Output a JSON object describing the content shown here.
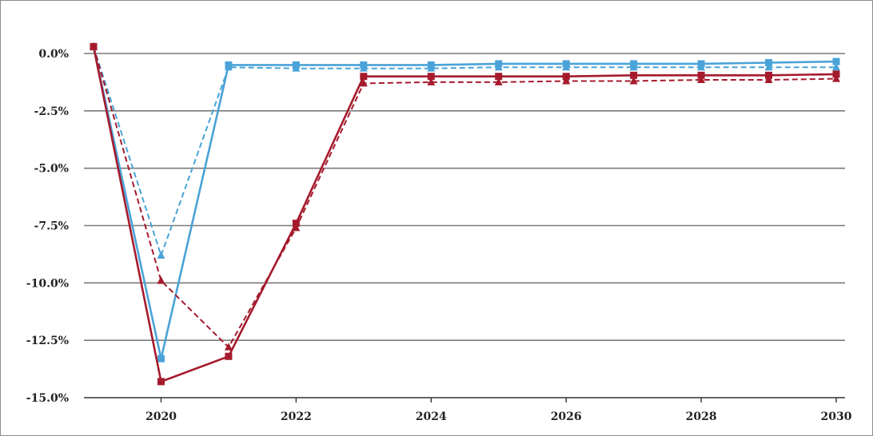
{
  "chart_data": {
    "type": "line",
    "title": "",
    "xlabel": "",
    "ylabel": "",
    "x": [
      2019,
      2020,
      2021,
      2022,
      2023,
      2024,
      2025,
      2026,
      2027,
      2028,
      2029,
      2030
    ],
    "xlim": [
      2019,
      2030
    ],
    "ylim": [
      -15.0,
      0.0
    ],
    "x_ticks": [
      {
        "value": 2020,
        "label": "2020"
      },
      {
        "value": 2022,
        "label": "2022"
      },
      {
        "value": 2024,
        "label": "2024"
      },
      {
        "value": 2026,
        "label": "2026"
      },
      {
        "value": 2028,
        "label": "2028"
      },
      {
        "value": 2030,
        "label": "2030"
      }
    ],
    "y_ticks": [
      {
        "value": 0.0,
        "label": "0.0%"
      },
      {
        "value": -2.5,
        "label": "-2.5%"
      },
      {
        "value": -5.0,
        "label": "-5.0%"
      },
      {
        "value": -7.5,
        "label": "-7.5%"
      },
      {
        "value": -10.0,
        "label": "-10.0%"
      },
      {
        "value": -12.5,
        "label": "-12.5%"
      },
      {
        "value": -15.0,
        "label": "-15.0%"
      }
    ],
    "grid": "horizontal",
    "legend": "none",
    "series": [
      {
        "color": "#4aa3d8",
        "line": "solid",
        "marker": "square",
        "values": [
          0.3,
          -13.3,
          -0.5,
          -0.5,
          -0.5,
          -0.5,
          -0.45,
          -0.45,
          -0.45,
          -0.45,
          -0.4,
          -0.35
        ]
      },
      {
        "color": "#4aa3d8",
        "line": "dashed",
        "marker": "triangle",
        "values": [
          0.3,
          -8.8,
          -0.6,
          -0.65,
          -0.65,
          -0.65,
          -0.6,
          -0.6,
          -0.6,
          -0.6,
          -0.6,
          -0.6
        ]
      },
      {
        "color": "#a51b2d",
        "line": "solid",
        "marker": "square",
        "values": [
          0.3,
          -14.3,
          -13.2,
          -7.4,
          -1.0,
          -1.0,
          -1.0,
          -1.0,
          -0.95,
          -0.95,
          -0.95,
          -0.9
        ]
      },
      {
        "color": "#a51b2d",
        "line": "dashed",
        "marker": "triangle",
        "values": [
          0.3,
          -9.9,
          -12.8,
          -7.6,
          -1.3,
          -1.25,
          -1.25,
          -1.2,
          -1.2,
          -1.15,
          -1.15,
          -1.1
        ]
      }
    ]
  }
}
